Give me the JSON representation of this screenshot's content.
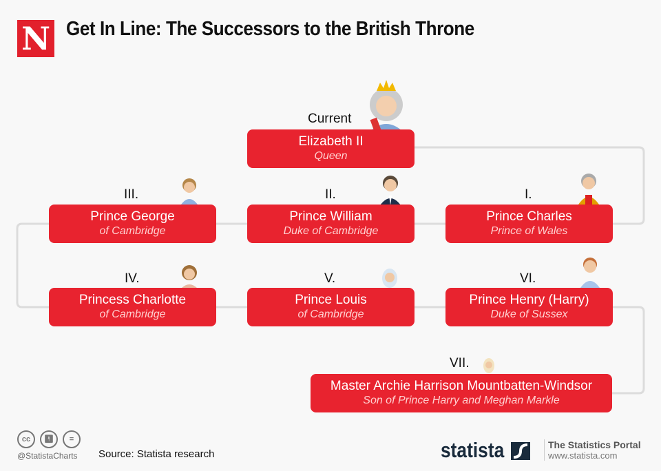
{
  "header": {
    "logo_letter": "N",
    "title": "Get In Line: The Successors to the British Throne"
  },
  "accent_color": "#e8232f",
  "nodes": [
    {
      "rank": "Current",
      "name": "Elizabeth II",
      "subtitle": "Queen"
    },
    {
      "rank": "I.",
      "name": "Prince Charles",
      "subtitle": "Prince of Wales"
    },
    {
      "rank": "II.",
      "name": "Prince William",
      "subtitle": "Duke of Cambridge"
    },
    {
      "rank": "III.",
      "name": "Prince George",
      "subtitle": "of Cambridge"
    },
    {
      "rank": "IV.",
      "name": "Princess Charlotte",
      "subtitle": "of Cambridge"
    },
    {
      "rank": "V.",
      "name": "Prince Louis",
      "subtitle": "of Cambridge"
    },
    {
      "rank": "VI.",
      "name": "Prince Henry (Harry)",
      "subtitle": "Duke of Sussex"
    },
    {
      "rank": "VII.",
      "name": "Master Archie Harrison Mountbatten-Windsor",
      "subtitle": "Son of Prince Harry and Meghan Markle"
    }
  ],
  "footer": {
    "handle": "@StatistaCharts",
    "source": "Source: Statista research",
    "brand": "statista",
    "portal": "The Statistics Portal",
    "url": "www.statista.com",
    "license_icons": [
      "cc",
      "by",
      "="
    ]
  }
}
